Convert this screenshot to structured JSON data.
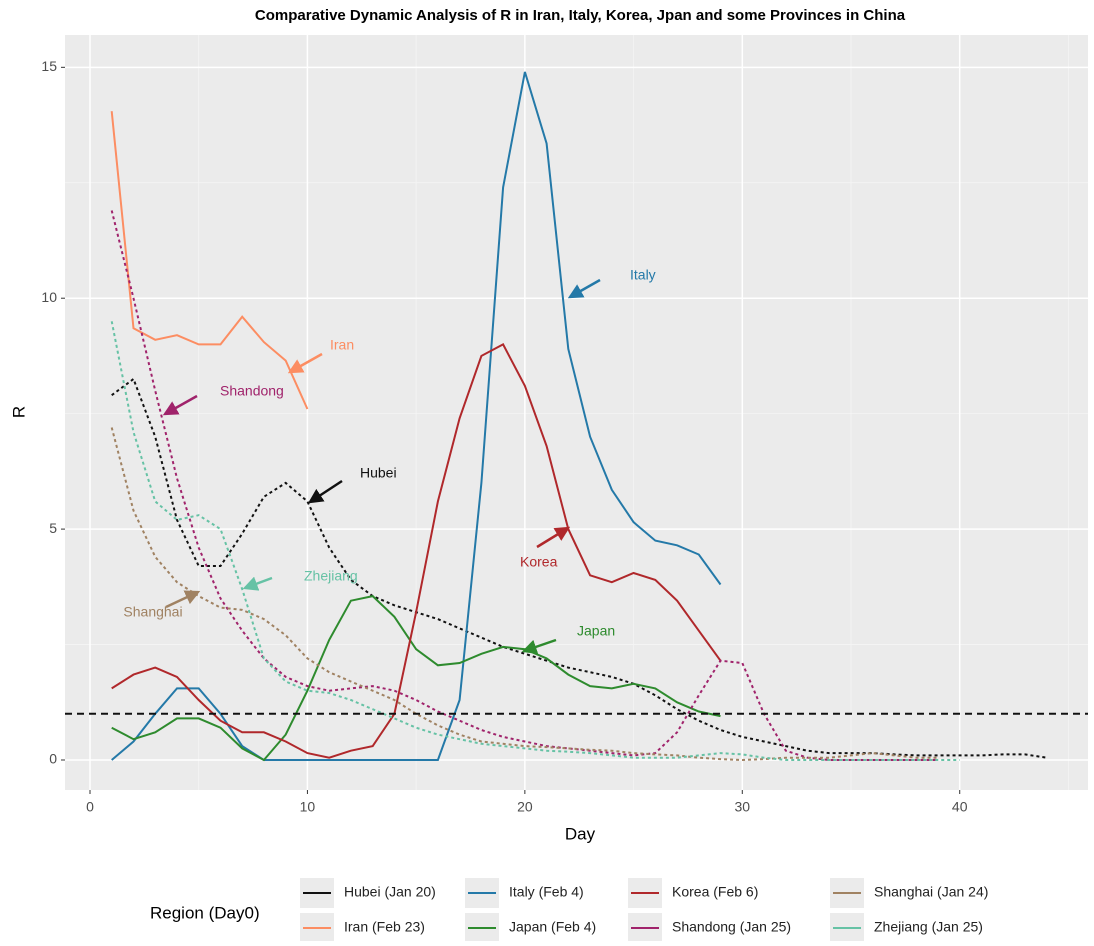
{
  "chart_data": {
    "type": "line",
    "title": "Comparative Dynamic Analysis of R in Iran, Italy, Korea, Jpan and some Provinces in China",
    "x_label": "Day",
    "y_label": "R",
    "xlim": [
      -1.15,
      45.9
    ],
    "ylim": [
      -0.65,
      15.7
    ],
    "xticks": [
      0,
      10,
      20,
      30,
      40
    ],
    "yticks": [
      0,
      5,
      10,
      15
    ],
    "grid": true,
    "reference_line": 1,
    "legend_title": "Region (Day0)",
    "legend_position": "bottom",
    "annotations": [
      "Italy",
      "Iran",
      "Shandong",
      "Hubei",
      "Zhejiang",
      "Shanghai",
      "Korea",
      "Japan"
    ],
    "series": [
      {
        "name": "Hubei (Jan 20)",
        "color": "#111111",
        "linetype": "dashed",
        "x": [
          1,
          2,
          3,
          4,
          5,
          6,
          7,
          8,
          9,
          10,
          11,
          12,
          13,
          14,
          15,
          16,
          17,
          18,
          19,
          20,
          21,
          22,
          23,
          24,
          25,
          26,
          27,
          28,
          29,
          30,
          31,
          32,
          33,
          34,
          35,
          36,
          37,
          38,
          39,
          40,
          41,
          42,
          43,
          44
        ],
        "values": [
          7.9,
          8.25,
          7.0,
          5.2,
          4.2,
          4.2,
          4.9,
          5.7,
          6.0,
          5.6,
          4.6,
          3.9,
          3.55,
          3.35,
          3.2,
          3.05,
          2.85,
          2.65,
          2.45,
          2.3,
          2.15,
          2.0,
          1.9,
          1.8,
          1.65,
          1.4,
          1.1,
          0.85,
          0.65,
          0.5,
          0.4,
          0.3,
          0.2,
          0.15,
          0.15,
          0.15,
          0.12,
          0.1,
          0.1,
          0.1,
          0.1,
          0.12,
          0.12,
          0.05
        ]
      },
      {
        "name": "Iran (Feb 23)",
        "color": "#fc8d62",
        "linetype": "solid",
        "x": [
          1,
          2,
          3,
          4,
          5,
          6,
          7,
          8,
          9,
          10
        ],
        "values": [
          14.05,
          9.35,
          9.1,
          9.2,
          9.0,
          9.0,
          9.6,
          9.05,
          8.65,
          7.6
        ]
      },
      {
        "name": "Italy (Feb 4)",
        "color": "#2479a8",
        "linetype": "solid",
        "x": [
          1,
          2,
          3,
          4,
          5,
          6,
          7,
          8,
          9,
          10,
          11,
          12,
          13,
          14,
          15,
          16,
          17,
          18,
          19,
          20,
          21,
          22,
          23,
          24,
          25,
          26,
          27,
          28,
          29
        ],
        "values": [
          0,
          0.4,
          1.0,
          1.55,
          1.55,
          1.0,
          0.3,
          0,
          0,
          0,
          0,
          0,
          0,
          0,
          0,
          0,
          1.3,
          6.0,
          12.4,
          14.9,
          13.35,
          8.9,
          7.0,
          5.85,
          5.15,
          4.75,
          4.65,
          4.45,
          3.8
        ]
      },
      {
        "name": "Japan (Feb 4)",
        "color": "#2e8b2e",
        "linetype": "solid",
        "x": [
          1,
          2,
          3,
          4,
          5,
          6,
          7,
          8,
          9,
          10,
          11,
          12,
          13,
          14,
          15,
          16,
          17,
          18,
          19,
          20,
          21,
          22,
          23,
          24,
          25,
          26,
          27,
          28,
          29
        ],
        "values": [
          0.7,
          0.45,
          0.6,
          0.9,
          0.9,
          0.7,
          0.25,
          0,
          0.55,
          1.5,
          2.6,
          3.45,
          3.55,
          3.1,
          2.4,
          2.05,
          2.1,
          2.3,
          2.45,
          2.4,
          2.2,
          1.85,
          1.6,
          1.55,
          1.65,
          1.55,
          1.25,
          1.05,
          0.95
        ]
      },
      {
        "name": "Korea (Feb 6)",
        "color": "#b0282b",
        "linetype": "solid",
        "x": [
          1,
          2,
          3,
          4,
          5,
          6,
          7,
          8,
          9,
          10,
          11,
          12,
          13,
          14,
          15,
          16,
          17,
          18,
          19,
          20,
          21,
          22,
          23,
          24,
          25,
          26,
          27,
          28,
          29
        ],
        "values": [
          1.55,
          1.85,
          2.0,
          1.8,
          1.3,
          0.85,
          0.6,
          0.6,
          0.4,
          0.15,
          0.05,
          0.2,
          0.3,
          1.0,
          3.2,
          5.6,
          7.4,
          8.75,
          9.0,
          8.1,
          6.8,
          5.0,
          4.0,
          3.85,
          4.05,
          3.9,
          3.45,
          2.8,
          2.15
        ]
      },
      {
        "name": "Shandong (Jan 25)",
        "color": "#a0236b",
        "linetype": "dashed",
        "x": [
          1,
          2,
          3,
          4,
          5,
          6,
          7,
          8,
          9,
          10,
          11,
          12,
          13,
          14,
          15,
          16,
          17,
          18,
          19,
          20,
          21,
          22,
          23,
          24,
          25,
          26,
          27,
          28,
          29,
          30,
          31,
          32,
          33,
          34,
          35,
          36,
          37,
          38,
          39
        ],
        "values": [
          11.9,
          10.0,
          8.0,
          6.1,
          4.6,
          3.5,
          2.8,
          2.2,
          1.8,
          1.6,
          1.5,
          1.55,
          1.6,
          1.5,
          1.3,
          1.05,
          0.85,
          0.65,
          0.5,
          0.4,
          0.3,
          0.25,
          0.2,
          0.15,
          0.1,
          0.15,
          0.6,
          1.4,
          2.15,
          2.1,
          1.0,
          0.2,
          0.05,
          0,
          0,
          0,
          0,
          0,
          0
        ]
      },
      {
        "name": "Shanghai (Jan 24)",
        "color": "#a08262",
        "linetype": "dashed",
        "x": [
          1,
          2,
          3,
          4,
          5,
          6,
          7,
          8,
          9,
          10,
          11,
          12,
          13,
          14,
          15,
          16,
          17,
          18,
          19,
          20,
          21,
          22,
          23,
          24,
          25,
          26,
          27,
          28,
          29,
          30,
          31,
          32,
          33,
          34,
          35,
          36,
          37,
          38,
          39
        ],
        "values": [
          7.2,
          5.4,
          4.4,
          3.85,
          3.55,
          3.3,
          3.25,
          3.05,
          2.7,
          2.2,
          1.9,
          1.7,
          1.5,
          1.3,
          1.0,
          0.75,
          0.55,
          0.4,
          0.35,
          0.3,
          0.28,
          0.25,
          0.22,
          0.2,
          0.15,
          0.12,
          0.1,
          0.05,
          0.02,
          0,
          0.02,
          0.05,
          0.05,
          0.05,
          0.1,
          0.15,
          0.1,
          0.05,
          0.05
        ]
      },
      {
        "name": "Zhejiang (Jan 25)",
        "color": "#66c2a5",
        "linetype": "dashed",
        "x": [
          1,
          2,
          3,
          4,
          5,
          6,
          7,
          8,
          9,
          10,
          11,
          12,
          13,
          14,
          15,
          16,
          17,
          18,
          19,
          20,
          21,
          22,
          23,
          24,
          25,
          26,
          27,
          28,
          29,
          30,
          31,
          32,
          33,
          34,
          35,
          36,
          37,
          38,
          39,
          40
        ],
        "values": [
          9.5,
          7.1,
          5.6,
          5.2,
          5.3,
          5.0,
          3.7,
          2.2,
          1.7,
          1.5,
          1.45,
          1.3,
          1.1,
          0.9,
          0.7,
          0.55,
          0.45,
          0.35,
          0.3,
          0.25,
          0.2,
          0.18,
          0.15,
          0.1,
          0.05,
          0.05,
          0.05,
          0.1,
          0.15,
          0.12,
          0.05,
          0,
          0,
          0,
          0,
          0,
          0,
          0,
          0,
          0
        ]
      }
    ]
  }
}
